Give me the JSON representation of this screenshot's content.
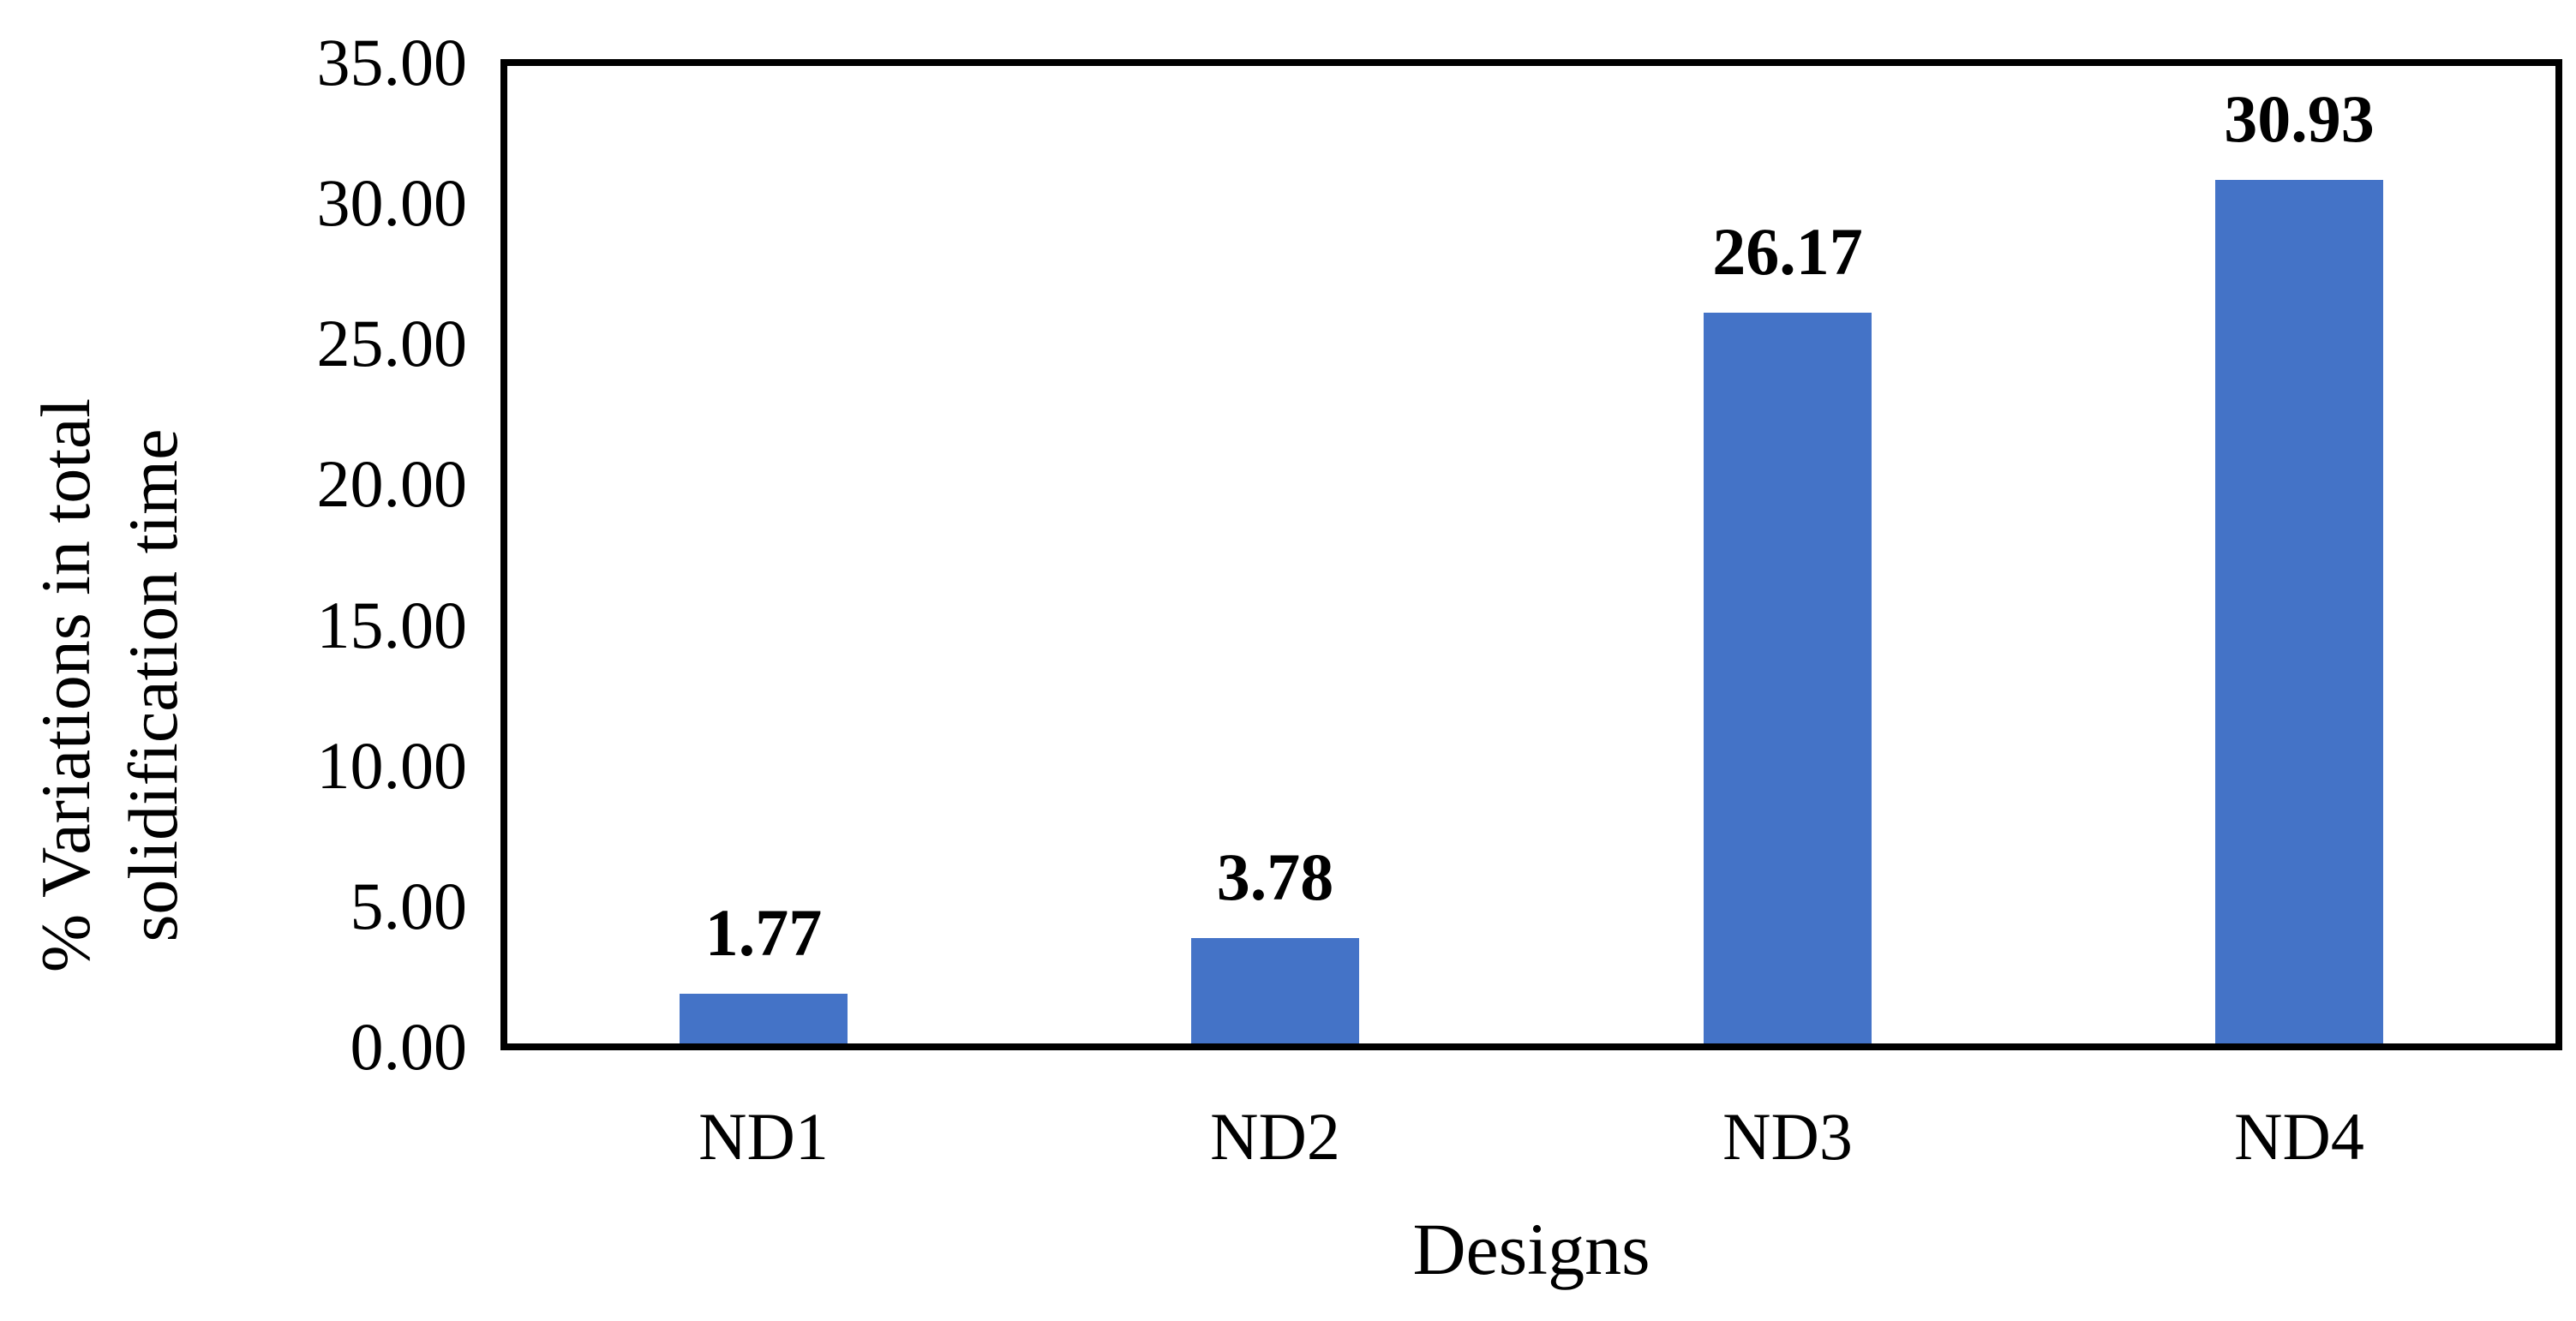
{
  "chart_data": {
    "type": "bar",
    "title": "",
    "categories": [
      "ND1",
      "ND2",
      "ND3",
      "ND4"
    ],
    "values": [
      1.77,
      3.78,
      26.17,
      30.93
    ],
    "value_labels": [
      "1.77",
      "3.78",
      "26.17",
      "30.93"
    ],
    "series": [
      {
        "name": "% Variations in total solidification time",
        "values": [
          1.77,
          3.78,
          26.17,
          30.93
        ]
      }
    ],
    "xlabel": "Designs",
    "ylabel": "% Variations in total solidification time",
    "ylabel_lines": [
      "% Variations in total",
      "solidification time"
    ],
    "ylim": [
      0,
      35
    ],
    "ytick_step": 5,
    "ytick_labels": [
      "0.00",
      "5.00",
      "10.00",
      "15.00",
      "20.00",
      "25.00",
      "30.00",
      "35.00"
    ],
    "grid": false,
    "legend": "none",
    "colors": {
      "bar": "#4473C7",
      "axis": "#000000",
      "text": "#000000",
      "background": "#FFFFFF"
    }
  }
}
